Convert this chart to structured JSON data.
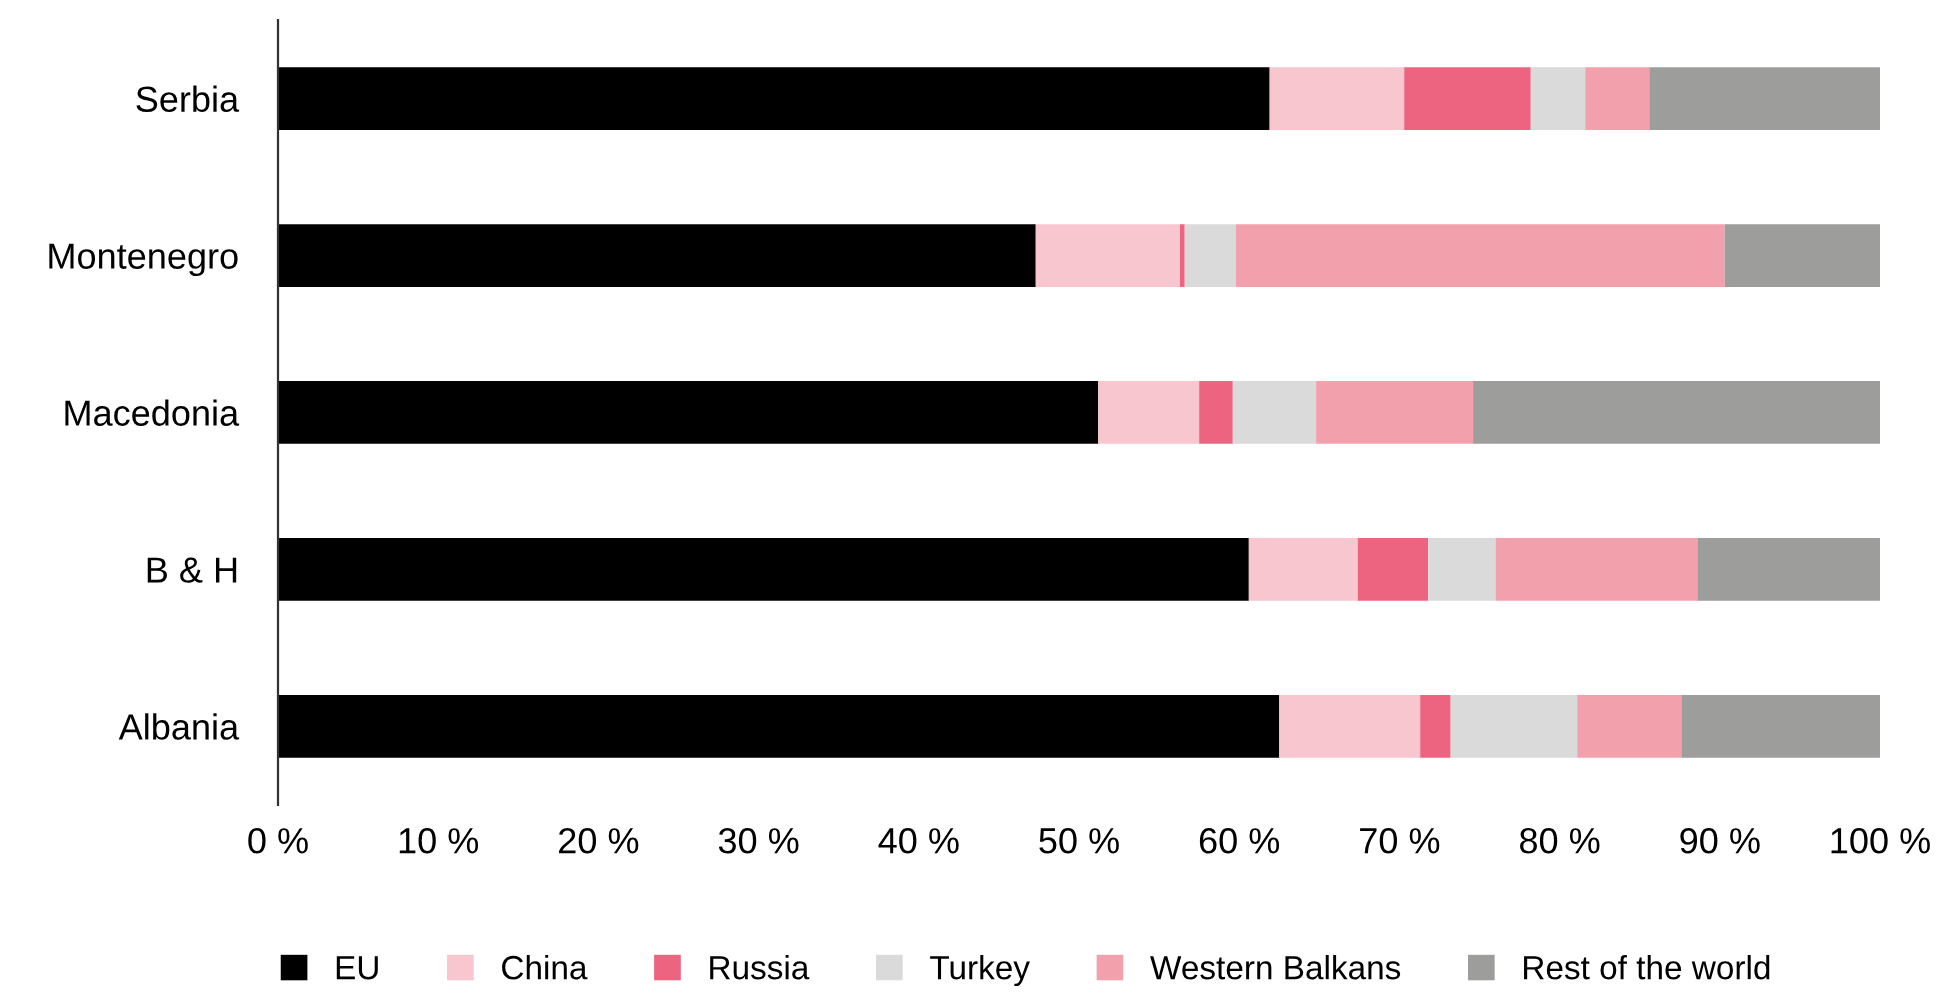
{
  "chart_data": {
    "type": "bar",
    "orientation": "horizontal",
    "stacked": true,
    "categories": [
      "Serbia",
      "Montenegro",
      "Macedonia",
      "B & H",
      "Albania"
    ],
    "series": [
      {
        "name": "EU",
        "color": "#000000",
        "values": [
          61.9,
          47.3,
          51.2,
          60.6,
          62.5
        ]
      },
      {
        "name": "China",
        "color": "#f7c6ce",
        "values": [
          8.4,
          9.0,
          6.3,
          6.8,
          8.8
        ]
      },
      {
        "name": "Russia",
        "color": "#ec6480",
        "values": [
          7.9,
          0.3,
          2.1,
          4.4,
          1.9
        ]
      },
      {
        "name": "Turkey",
        "color": "#dadada",
        "values": [
          3.4,
          3.2,
          5.2,
          4.2,
          7.9
        ]
      },
      {
        "name": "Western Balkans",
        "color": "#f3a0ad",
        "values": [
          4.0,
          30.5,
          9.8,
          12.6,
          6.5
        ]
      },
      {
        "name": "Rest of the world",
        "color": "#9d9d9c",
        "values": [
          14.4,
          9.7,
          25.4,
          11.4,
          12.4
        ]
      }
    ],
    "xlim": [
      0,
      100
    ],
    "xticks": [
      {
        "value": 0,
        "label": "0 %"
      },
      {
        "value": 10,
        "label": "10 %"
      },
      {
        "value": 20,
        "label": "20 %"
      },
      {
        "value": 30,
        "label": "30 %"
      },
      {
        "value": 40,
        "label": "40 %"
      },
      {
        "value": 50,
        "label": "50 %"
      },
      {
        "value": 60,
        "label": "60 %"
      },
      {
        "value": 70,
        "label": "70 %"
      },
      {
        "value": 80,
        "label": "80 %"
      },
      {
        "value": 90,
        "label": "90 %"
      },
      {
        "value": 100,
        "label": "100 %"
      }
    ],
    "grid": false,
    "legend": "bottom"
  }
}
